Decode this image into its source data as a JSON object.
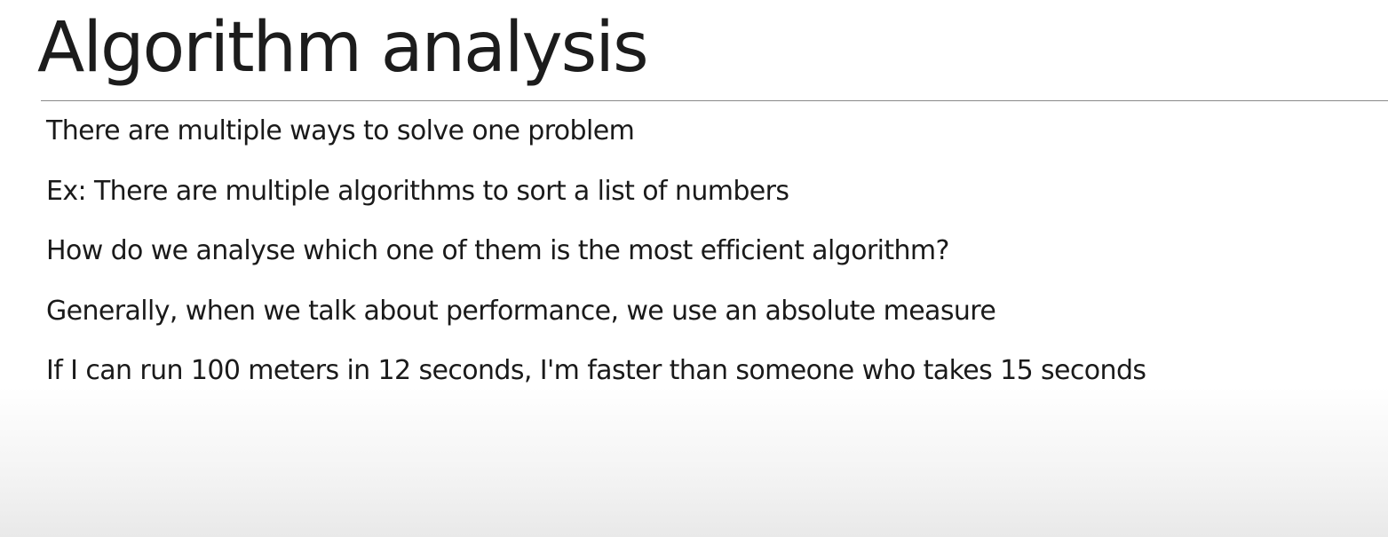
{
  "slide": {
    "title": "Algorithm analysis",
    "bullets": [
      "There are multiple ways to solve one problem",
      "Ex: There are multiple algorithms to sort a list of numbers",
      "How do we analyse which one of them is the most efficient algorithm?",
      "Generally, when we talk about performance, we use an absolute measure",
      "If I can run 100 meters in 12 seconds, I'm faster than someone who takes 15 seconds"
    ]
  },
  "colors": {
    "text": "#1a1a1a",
    "rule": "#8a8a8a",
    "background": "#ffffff"
  }
}
